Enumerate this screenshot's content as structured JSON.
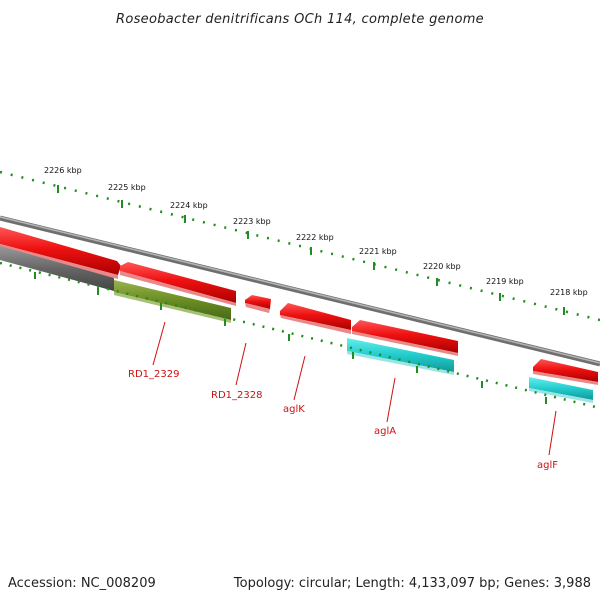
{
  "title": "Roseobacter denitrificans OCh 114, complete genome",
  "footer": {
    "accession": "Accession: NC_008209",
    "summary": "Topology: circular; Length: 4,133,097 bp; Genes: 3,988"
  },
  "kbp_labels": [
    "2226 kbp",
    "2225 kbp",
    "2224 kbp",
    "2223 kbp",
    "2222 kbp",
    "2221 kbp",
    "2220 kbp",
    "2219 kbp",
    "2218 kbp"
  ],
  "gene_labels": [
    "RD1_2329",
    "RD1_2328",
    "aglK",
    "aglA",
    "aglF"
  ],
  "colors": {
    "forward_gene": "#ee1111",
    "reverse_gene_red": "#ee1111",
    "reverse_gene_cyan": "#22cccc",
    "reverse_gene_olive": "#6b8e23",
    "backbone": "#888888",
    "ticks": "#228b22",
    "label_red": "#cc1111"
  }
}
